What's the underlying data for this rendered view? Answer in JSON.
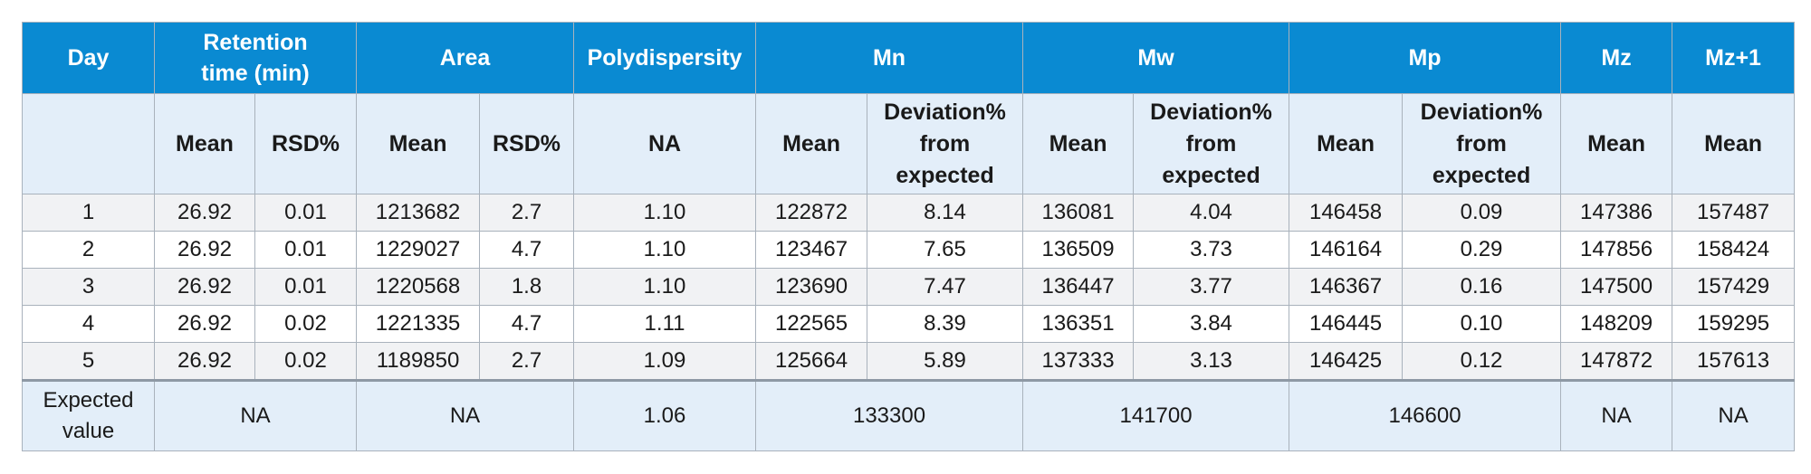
{
  "headers": {
    "day": "Day",
    "retention": "Retention time (min)",
    "area": "Area",
    "polydispersity": "Polydispersity",
    "mn": "Mn",
    "mw": "Mw",
    "mp": "Mp",
    "mz": "Mz",
    "mz1": "Mz+1"
  },
  "subheaders": {
    "day": "",
    "mean": "Mean",
    "rsd": "RSD%",
    "na": "NA",
    "deviation": "Deviation% from expected"
  },
  "rows": [
    [
      "1",
      "26.92",
      "0.01",
      "1213682",
      "2.7",
      "1.10",
      "122872",
      "8.14",
      "136081",
      "4.04",
      "146458",
      "0.09",
      "147386",
      "157487"
    ],
    [
      "2",
      "26.92",
      "0.01",
      "1229027",
      "4.7",
      "1.10",
      "123467",
      "7.65",
      "136509",
      "3.73",
      "146164",
      "0.29",
      "147856",
      "158424"
    ],
    [
      "3",
      "26.92",
      "0.01",
      "1220568",
      "1.8",
      "1.10",
      "123690",
      "7.47",
      "136447",
      "3.77",
      "146367",
      "0.16",
      "147500",
      "157429"
    ],
    [
      "4",
      "26.92",
      "0.02",
      "1221335",
      "4.7",
      "1.11",
      "122565",
      "8.39",
      "136351",
      "3.84",
      "146445",
      "0.10",
      "148209",
      "159295"
    ],
    [
      "5",
      "26.92",
      "0.02",
      "1189850",
      "2.7",
      "1.09",
      "125664",
      "5.89",
      "137333",
      "3.13",
      "146425",
      "0.12",
      "147872",
      "157613"
    ]
  ],
  "expected": {
    "label": "Expected value",
    "retention": "NA",
    "area": "NA",
    "polydispersity": "1.06",
    "mn": "133300",
    "mw": "141700",
    "mp": "146600",
    "mz": "NA",
    "mz1": "NA"
  },
  "colors": {
    "header_bg": "#0a8ad2",
    "subheader_bg": "#e3eef9",
    "stripe_bg": "#f1f2f4",
    "border": "#a9b2bc"
  }
}
